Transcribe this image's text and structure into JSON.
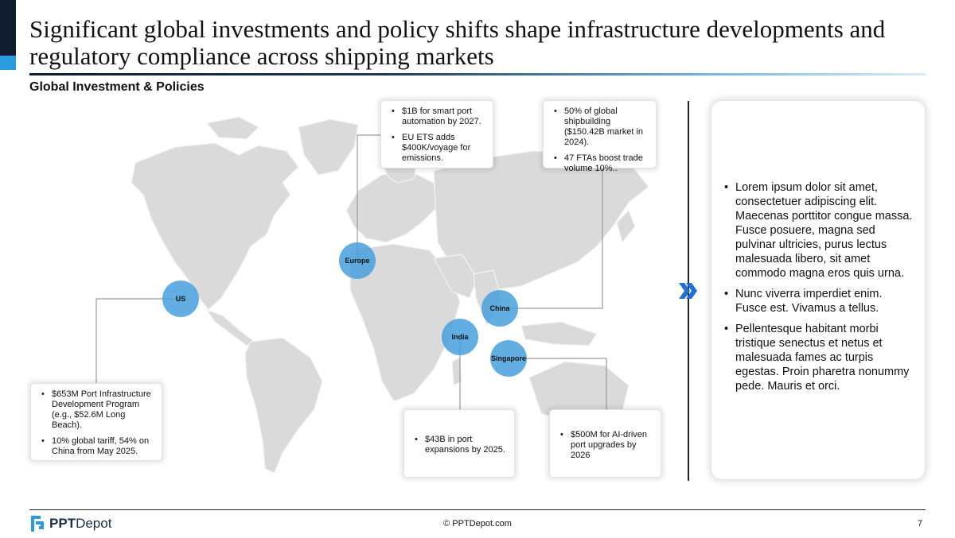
{
  "header": {
    "title": "Significant global investments and policy shifts shape infrastructure developments and regulatory compliance across shipping markets",
    "subtitle": "Global Investment & Policies"
  },
  "regions": {
    "us": {
      "label": "US",
      "bullets": [
        "$653M Port Infrastructure Development Program (e.g., $52.6M Long Beach).",
        "10% global tariff, 54% on China from May 2025."
      ]
    },
    "europe": {
      "label": "Europe",
      "bullets": [
        "$1B for smart port automation by 2027.",
        "EU ETS adds $400K/voyage for emissions."
      ]
    },
    "china": {
      "label": "China",
      "bullets": [
        "50% of global shipbuilding ($150.42B market in 2024).",
        "47 FTAs boost trade volume 10%.."
      ]
    },
    "india": {
      "label": "India",
      "bullets": [
        "$43B in port expansions by 2025."
      ]
    },
    "singapore": {
      "label": "Singapore",
      "bullets": [
        "$500M for AI-driven port upgrades by 2026"
      ]
    }
  },
  "side_panel": {
    "bullets": [
      "Lorem ipsum dolor sit amet, consectetuer adipiscing elit. Maecenas porttitor congue massa. Fusce posuere, magna sed pulvinar ultricies, purus lectus malesuada libero, sit amet commodo magna eros quis urna.",
      "Nunc viverra imperdiet enim. Fusce est. Vivamus a tellus.",
      "Pellentesque habitant morbi tristique senectus et netus et malesuada fames ac turpis egestas. Proin pharetra nonummy pede. Mauris et orci."
    ]
  },
  "footer": {
    "logo_bold": "PPT",
    "logo_regular": "Depot",
    "copyright": "© PPTDepot.com",
    "page_number": "7"
  },
  "colors": {
    "accent_dark": "#0f1d2e",
    "accent_blue": "#2b9be0",
    "hub_blue": "#46a0de",
    "map_gray": "#dadada",
    "chevron_blue": "#1f6fd6"
  }
}
